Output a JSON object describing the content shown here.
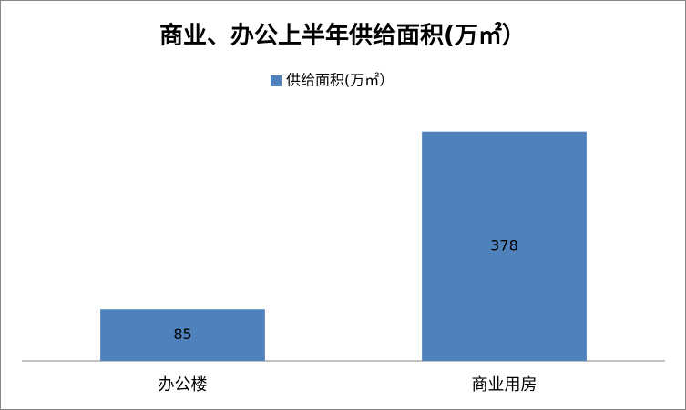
{
  "chart_data": {
    "type": "bar",
    "title": "商业、办公上半年供给面积(万㎡）",
    "categories": [
      "办公楼",
      "商业用房"
    ],
    "series": [
      {
        "name": "供给面积(万㎡）",
        "color": "#4f81bd",
        "values": [
          85,
          378
        ]
      }
    ],
    "ylim": [
      0,
      400
    ]
  }
}
